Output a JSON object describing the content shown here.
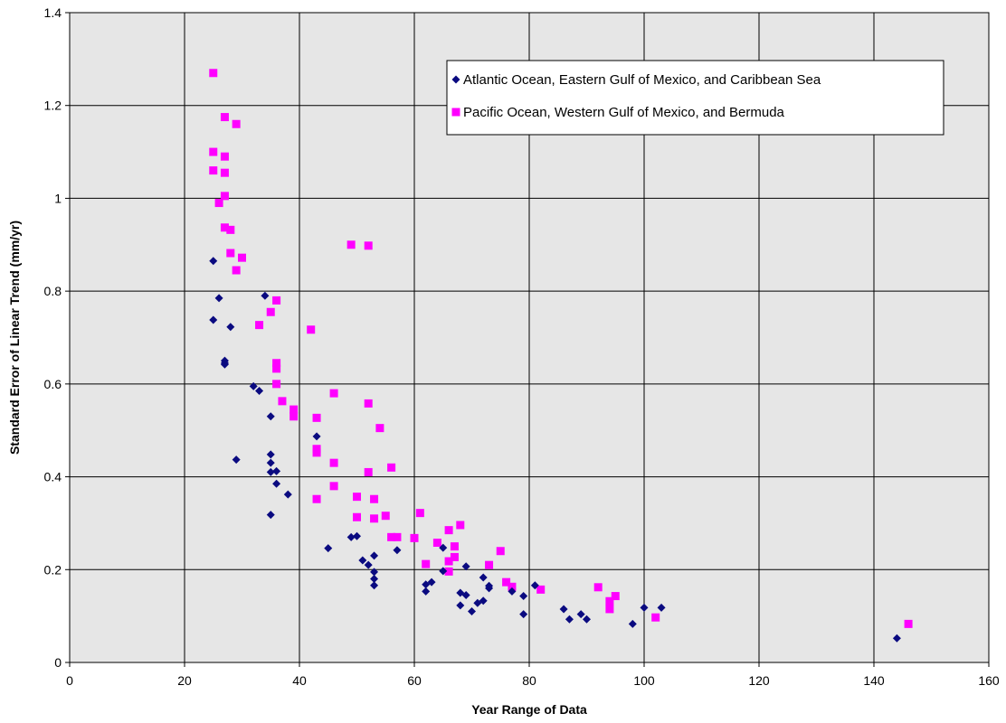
{
  "chart_data": {
    "type": "scatter",
    "xlabel": "Year Range of Data",
    "ylabel": "Standard Error of Linear Trend (mm/yr)",
    "xlim": [
      0,
      160
    ],
    "ylim": [
      0,
      1.4
    ],
    "x_ticks": [
      0,
      20,
      40,
      60,
      80,
      100,
      120,
      140,
      160
    ],
    "x_tick_labels": [
      "0",
      "20",
      "40",
      "60",
      "80",
      "100",
      "120",
      "140",
      "160"
    ],
    "y_ticks": [
      0,
      0.2,
      0.4,
      0.6,
      0.8,
      1,
      1.2,
      1.4
    ],
    "y_tick_labels": [
      "0",
      "0.2",
      "0.4",
      "0.6",
      "0.8",
      "1",
      "1.2",
      "1.4"
    ],
    "grid": true,
    "legend_position": "top-right",
    "plot_background": "#e6e6e6",
    "series": [
      {
        "name": "Atlantic Ocean, Eastern Gulf of Mexico, and Caribbean Sea",
        "marker": "diamond",
        "color": "#0a0a80",
        "points": [
          [
            25,
            0.865
          ],
          [
            25,
            0.738
          ],
          [
            26,
            0.785
          ],
          [
            27,
            0.65
          ],
          [
            27,
            0.645
          ],
          [
            27,
            0.642
          ],
          [
            28,
            0.723
          ],
          [
            29,
            0.437
          ],
          [
            32,
            0.595
          ],
          [
            33,
            0.585
          ],
          [
            34,
            0.79
          ],
          [
            35,
            0.53
          ],
          [
            35,
            0.448
          ],
          [
            35,
            0.43
          ],
          [
            35,
            0.41
          ],
          [
            35,
            0.318
          ],
          [
            36,
            0.412
          ],
          [
            36,
            0.385
          ],
          [
            38,
            0.362
          ],
          [
            43,
            0.487
          ],
          [
            45,
            0.246
          ],
          [
            49,
            0.27
          ],
          [
            50,
            0.272
          ],
          [
            51,
            0.22
          ],
          [
            52,
            0.21
          ],
          [
            53,
            0.23
          ],
          [
            53,
            0.195
          ],
          [
            53,
            0.18
          ],
          [
            53,
            0.166
          ],
          [
            57,
            0.242
          ],
          [
            62,
            0.168
          ],
          [
            62,
            0.153
          ],
          [
            63,
            0.173
          ],
          [
            65,
            0.247
          ],
          [
            65,
            0.197
          ],
          [
            68,
            0.15
          ],
          [
            68,
            0.123
          ],
          [
            69,
            0.207
          ],
          [
            69,
            0.145
          ],
          [
            70,
            0.11
          ],
          [
            71,
            0.128
          ],
          [
            72,
            0.183
          ],
          [
            72,
            0.133
          ],
          [
            73,
            0.165
          ],
          [
            73,
            0.16
          ],
          [
            77,
            0.153
          ],
          [
            79,
            0.143
          ],
          [
            79,
            0.104
          ],
          [
            81,
            0.166
          ],
          [
            86,
            0.115
          ],
          [
            87,
            0.093
          ],
          [
            89,
            0.104
          ],
          [
            90,
            0.093
          ],
          [
            98,
            0.083
          ],
          [
            100,
            0.118
          ],
          [
            103,
            0.118
          ],
          [
            144,
            0.052
          ]
        ]
      },
      {
        "name": "Pacific Ocean, Western Gulf of Mexico, and Bermuda",
        "marker": "square",
        "color": "#ff00ff",
        "points": [
          [
            25,
            1.27
          ],
          [
            25,
            1.1
          ],
          [
            25,
            1.06
          ],
          [
            26,
            0.99
          ],
          [
            27,
            1.175
          ],
          [
            27,
            1.09
          ],
          [
            27,
            1.055
          ],
          [
            27,
            1.005
          ],
          [
            27,
            0.937
          ],
          [
            28,
            0.932
          ],
          [
            28,
            0.882
          ],
          [
            29,
            1.16
          ],
          [
            29,
            0.845
          ],
          [
            30,
            0.872
          ],
          [
            33,
            0.727
          ],
          [
            35,
            0.755
          ],
          [
            36,
            0.78
          ],
          [
            36,
            0.645
          ],
          [
            36,
            0.633
          ],
          [
            36,
            0.6
          ],
          [
            37,
            0.563
          ],
          [
            39,
            0.545
          ],
          [
            39,
            0.53
          ],
          [
            42,
            0.717
          ],
          [
            43,
            0.527
          ],
          [
            43,
            0.46
          ],
          [
            43,
            0.452
          ],
          [
            43,
            0.352
          ],
          [
            46,
            0.58
          ],
          [
            46,
            0.43
          ],
          [
            46,
            0.38
          ],
          [
            49,
            0.9
          ],
          [
            50,
            0.357
          ],
          [
            50,
            0.313
          ],
          [
            52,
            0.898
          ],
          [
            52,
            0.558
          ],
          [
            52,
            0.41
          ],
          [
            53,
            0.352
          ],
          [
            53,
            0.31
          ],
          [
            54,
            0.505
          ],
          [
            55,
            0.316
          ],
          [
            56,
            0.42
          ],
          [
            56,
            0.27
          ],
          [
            57,
            0.27
          ],
          [
            60,
            0.268
          ],
          [
            61,
            0.322
          ],
          [
            62,
            0.212
          ],
          [
            64,
            0.258
          ],
          [
            66,
            0.285
          ],
          [
            66,
            0.218
          ],
          [
            66,
            0.196
          ],
          [
            67,
            0.25
          ],
          [
            67,
            0.227
          ],
          [
            68,
            0.296
          ],
          [
            73,
            0.21
          ],
          [
            75,
            0.24
          ],
          [
            76,
            0.173
          ],
          [
            77,
            0.163
          ],
          [
            82,
            0.157
          ],
          [
            92,
            0.162
          ],
          [
            94,
            0.132
          ],
          [
            94,
            0.115
          ],
          [
            95,
            0.143
          ],
          [
            102,
            0.097
          ],
          [
            146,
            0.083
          ]
        ]
      }
    ]
  }
}
